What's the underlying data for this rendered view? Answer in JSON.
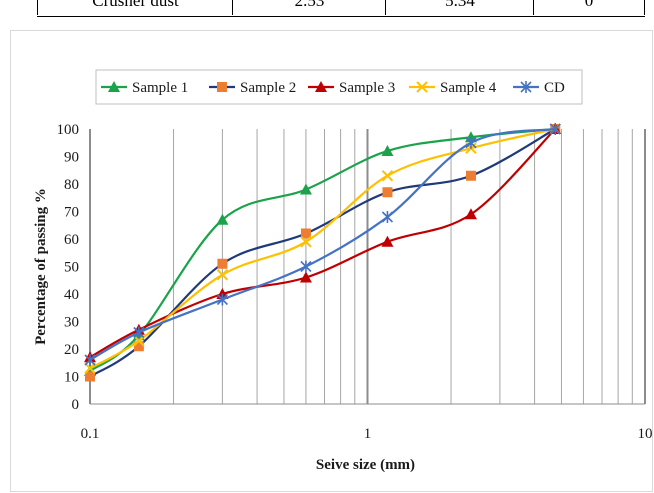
{
  "table_fragment": {
    "cells": [
      "Crusher dust",
      "2.53",
      "5.34",
      "0"
    ]
  },
  "chart_data": {
    "type": "line",
    "xscale": "log",
    "xlabel": "Seive size (mm)",
    "ylabel": "Percentage of passing %",
    "xlim": [
      0.1,
      10
    ],
    "ylim": [
      0,
      100
    ],
    "xticks": [
      "0.1",
      "1",
      "10"
    ],
    "yticks": [
      "0",
      "10",
      "20",
      "30",
      "40",
      "50",
      "60",
      "70",
      "80",
      "90",
      "100"
    ],
    "grid": "vertical",
    "legend": "top",
    "series": [
      {
        "name": "Sample 1",
        "color": "#1aa34a",
        "marker": "triangle",
        "points": [
          [
            0.1,
            12
          ],
          [
            0.15,
            25
          ],
          [
            0.3,
            67
          ],
          [
            0.6,
            78
          ],
          [
            1.18,
            92
          ],
          [
            2.36,
            97
          ],
          [
            4.75,
            100
          ]
        ]
      },
      {
        "name": "Sample 2",
        "color": "#1f3a7a",
        "marker_color": "#ed7d31",
        "marker": "square",
        "points": [
          [
            0.1,
            10
          ],
          [
            0.15,
            21
          ],
          [
            0.3,
            51
          ],
          [
            0.6,
            62
          ],
          [
            1.18,
            77
          ],
          [
            2.36,
            83
          ],
          [
            4.75,
            100
          ]
        ]
      },
      {
        "name": "Sample 3",
        "color": "#c00000",
        "marker": "triangle",
        "points": [
          [
            0.1,
            17
          ],
          [
            0.15,
            27
          ],
          [
            0.3,
            40
          ],
          [
            0.6,
            46
          ],
          [
            1.18,
            59
          ],
          [
            2.36,
            69
          ],
          [
            4.75,
            100
          ]
        ]
      },
      {
        "name": "Sample 4",
        "color": "#ffc000",
        "marker": "x",
        "points": [
          [
            0.1,
            13
          ],
          [
            0.15,
            23
          ],
          [
            0.3,
            47
          ],
          [
            0.6,
            59
          ],
          [
            1.18,
            83
          ],
          [
            2.36,
            93
          ],
          [
            4.75,
            100
          ]
        ]
      },
      {
        "name": "CD",
        "color": "#4472c4",
        "marker": "asterisk",
        "points": [
          [
            0.1,
            16
          ],
          [
            0.15,
            26
          ],
          [
            0.3,
            38
          ],
          [
            0.6,
            50
          ],
          [
            1.18,
            68
          ],
          [
            2.36,
            95
          ],
          [
            4.75,
            100
          ]
        ]
      }
    ]
  }
}
